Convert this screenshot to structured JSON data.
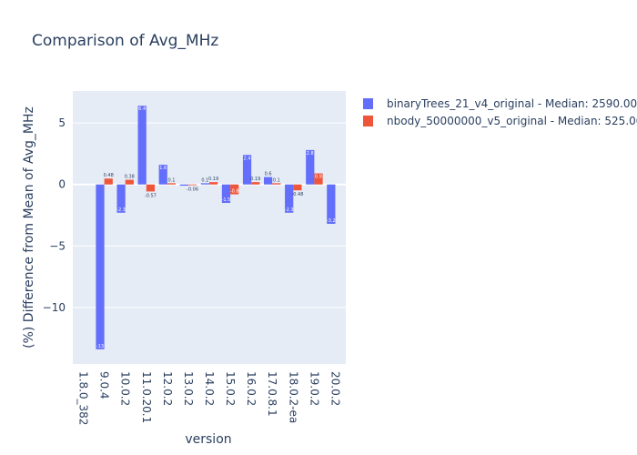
{
  "chart_data": {
    "type": "bar",
    "title": "Comparison of Avg_MHz",
    "xlabel": "version",
    "ylabel": "(%) Difference from Mean of Avg_MHz",
    "categories": [
      "1.8.0_382",
      "9.0.4",
      "10.0.2",
      "11.0.20.1",
      "12.0.2",
      "13.0.2",
      "14.0.2",
      "15.0.2",
      "16.0.2",
      "17.0.8.1",
      "18.0.2-ea",
      "19.0.2",
      "20.0.2"
    ],
    "ylim": [
      -14.6,
      7.6
    ],
    "yticks": [
      -10,
      -5,
      0,
      5
    ],
    "grid": true,
    "legend_position": "top-right",
    "series": [
      {
        "name": "binaryTrees_21_v4_original - Median: 2590.00",
        "color": "#636efa",
        "values": [
          null,
          -13.4,
          -2.3,
          6.4,
          1.6,
          -0.1,
          0.1,
          -1.5,
          2.4,
          0.6,
          -2.3,
          2.8,
          -3.2
        ],
        "labels": [
          "",
          "-13",
          "-2.3",
          "6.4",
          "1.6",
          "",
          "0.1",
          "-1.5",
          "2.4",
          "0.6",
          "-2.3",
          "2.8",
          "-3.2"
        ]
      },
      {
        "name": "nbody_50000000_v5_original - Median: 525.00",
        "color": "#ef553b",
        "values": [
          null,
          0.48,
          0.38,
          -0.57,
          0.1,
          -0.06,
          0.19,
          -0.8,
          0.19,
          0.1,
          -0.48,
          0.9,
          null
        ],
        "labels": [
          "",
          "0.48",
          "0.38",
          "-0.57",
          "0.1",
          "-0.06",
          "0.19",
          "-0.8",
          "0.19",
          "0.1",
          "-0.48",
          "0.9",
          ""
        ]
      }
    ]
  }
}
